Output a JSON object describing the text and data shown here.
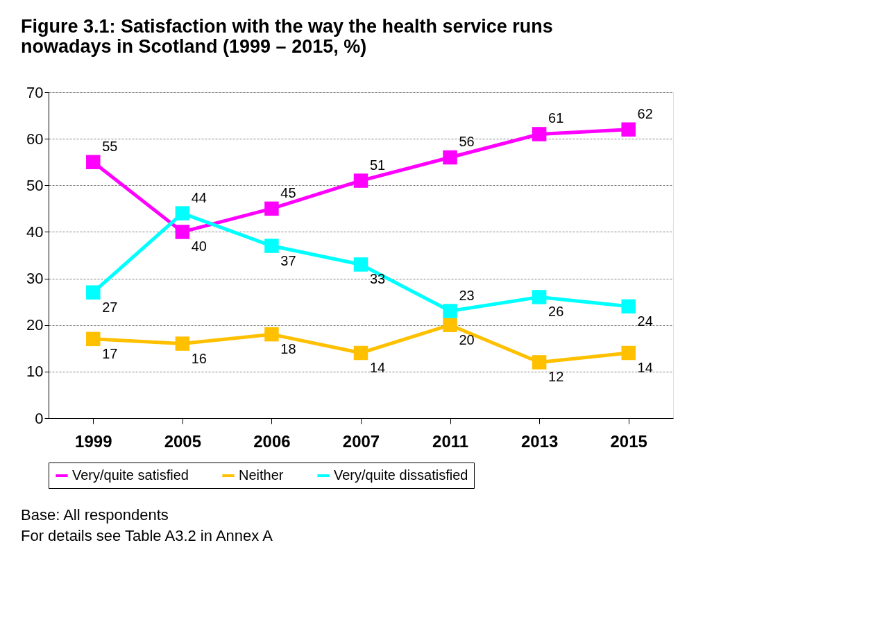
{
  "chart_data": {
    "type": "line",
    "title": "Figure 3.1: Satisfaction with the way the health service runs nowadays in Scotland (1999 – 2015, %)",
    "categories": [
      "1999",
      "2005",
      "2006",
      "2007",
      "2011",
      "2013",
      "2015"
    ],
    "series": [
      {
        "name": "Very/quite satisfied",
        "color": "#ff00ff",
        "values": [
          55,
          40,
          45,
          51,
          56,
          61,
          62
        ]
      },
      {
        "name": "Neither",
        "color": "#ffc000",
        "values": [
          17,
          16,
          18,
          14,
          20,
          12,
          14
        ]
      },
      {
        "name": "Very/quite dissatisfied",
        "color": "#00ffff",
        "values": [
          27,
          44,
          37,
          33,
          23,
          26,
          24
        ]
      }
    ],
    "ylim": [
      0,
      70
    ],
    "yticks": [
      0,
      10,
      20,
      30,
      40,
      50,
      60,
      70
    ],
    "grid": "y",
    "legend": "bottom",
    "marker": "square",
    "line_style": "solid",
    "data_labels": true,
    "annotations": [
      "Base: All respondents",
      "For details see Table A3.2 in Annex A"
    ]
  }
}
